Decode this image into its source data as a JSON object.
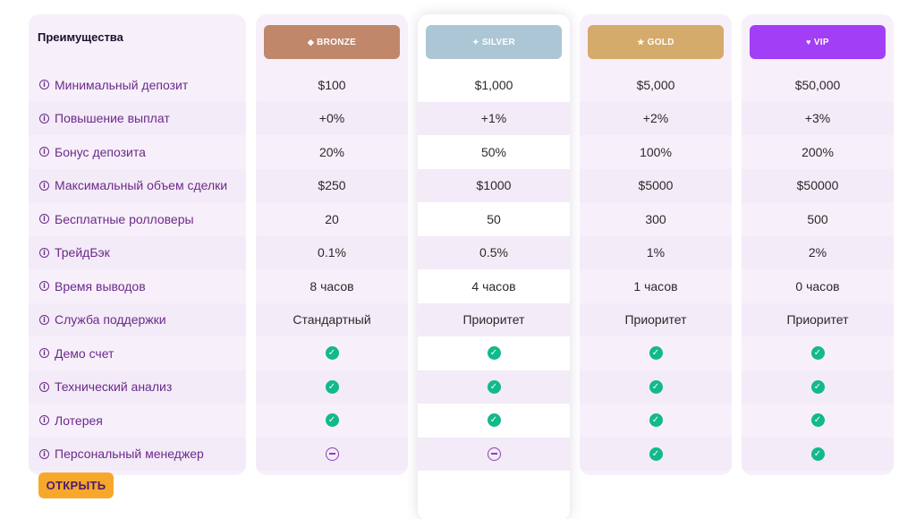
{
  "benefits_title": "Преимущества",
  "benefits": [
    "Минимальный депозит",
    "Повышение выплат",
    "Бонус депозита",
    "Максимальный объем сделки",
    "Бесплатные ролловеры",
    "ТрейдБэк",
    "Время выводов",
    "Служба поддержки",
    "Демо счет",
    "Технический анализ",
    "Лотерея",
    "Персональный менеджер"
  ],
  "tiers": [
    {
      "key": "bronze",
      "label": "BRONZE",
      "icon": "diamond-icon",
      "color": "#c0876b",
      "values": [
        "$100",
        "+0%",
        "20%",
        "$250",
        "20",
        "0.1%",
        "8 часов",
        "Стандартный"
      ],
      "features": [
        true,
        true,
        true,
        false
      ]
    },
    {
      "key": "silver",
      "label": "SILVER",
      "icon": "sparkle-icon",
      "color": "#adc6d6",
      "values": [
        "$1,000",
        "+1%",
        "50%",
        "$1000",
        "50",
        "0.5%",
        "4 часов",
        "Приоритет"
      ],
      "features": [
        true,
        true,
        true,
        false
      ]
    },
    {
      "key": "gold",
      "label": "GOLD",
      "icon": "star-icon",
      "color": "#d4ab6a",
      "values": [
        "$5,000",
        "+2%",
        "100%",
        "$5000",
        "300",
        "1%",
        "1 часов",
        "Приоритет"
      ],
      "features": [
        true,
        true,
        true,
        true
      ]
    },
    {
      "key": "vip",
      "label": "VIP",
      "icon": "heart-icon",
      "color": "#a33ef7",
      "values": [
        "$50,000",
        "+3%",
        "200%",
        "$50000",
        "500",
        "2%",
        "0 часов",
        "Приоритет"
      ],
      "features": [
        true,
        true,
        true,
        true
      ]
    }
  ],
  "open_button_label": "ОТКРЫТЬ",
  "colors": {
    "check": "#12b98a",
    "minus": "#8f3fb2",
    "label_text": "#6b2a8a",
    "open_button": "#f7a82b"
  }
}
